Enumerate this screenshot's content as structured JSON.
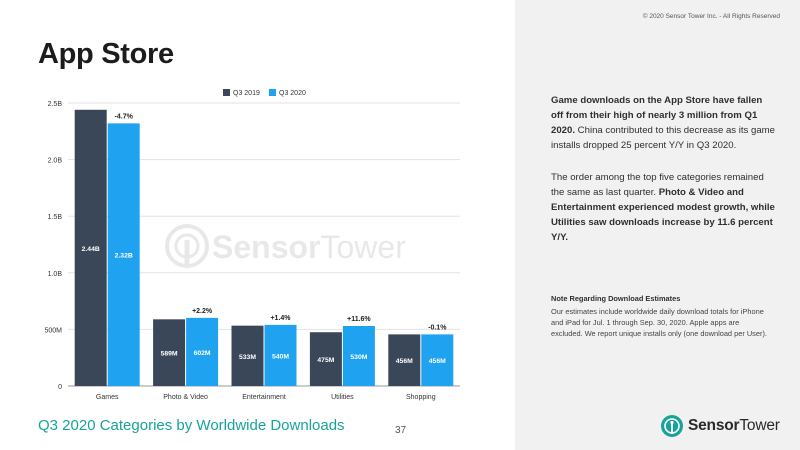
{
  "header": {
    "title": "App Store",
    "copyright": "© 2020 Sensor Tower Inc. - All Rights Reserved"
  },
  "footer": {
    "chart_title": "Q3 2020 Categories by Worldwide Downloads",
    "page_number": "37"
  },
  "watermark": {
    "text_bold": "Sensor",
    "text_light": "Tower"
  },
  "brand": {
    "text_bold": "Sensor",
    "text_light": "Tower",
    "color": "#17a39a"
  },
  "sidebar": {
    "para1": {
      "bold": "Game downloads on the App Store have fallen off from their high of nearly 3 million from Q1 2020.",
      "regular": " China contributed to this decrease as its game installs dropped 25 percent Y/Y in Q3 2020."
    },
    "para2": {
      "regular": "The order among the top five categories remained the same as last quarter. ",
      "bold": "Photo & Video and Entertainment experienced modest growth, while Utilities saw downloads increase by 11.6 percent Y/Y."
    },
    "note": {
      "title": "Note Regarding Download Estimates",
      "body": "Our estimates include worldwide daily download totals for iPhone and iPad for Jul. 1 through Sep. 30, 2020. Apple apps are excluded. We report unique installs only (one download per User)."
    }
  },
  "chart_data": {
    "type": "bar",
    "categories": [
      "Games",
      "Photo & Video",
      "Entertainment",
      "Utilities",
      "Shopping"
    ],
    "series": [
      {
        "name": "Q3 2019",
        "color": "#3a4759",
        "values": [
          2440,
          589,
          533,
          475,
          456
        ],
        "labels": [
          "2.44B",
          "589M",
          "533M",
          "475M",
          "456M"
        ]
      },
      {
        "name": "Q3 2020",
        "color": "#1fa3f0",
        "values": [
          2320,
          602,
          540,
          530,
          456
        ],
        "labels": [
          "2.32B",
          "602M",
          "540M",
          "530M",
          "456M"
        ]
      }
    ],
    "changes": [
      "-4.7%",
      "+2.2%",
      "+1.4%",
      "+11.6%",
      "-0.1%"
    ],
    "ylim": [
      0,
      2500
    ],
    "yticks": [
      0,
      500,
      1000,
      1500,
      2000,
      2500
    ],
    "ytick_labels": [
      "0",
      "500M",
      "1.0B",
      "1.5B",
      "2.0B",
      "2.5B"
    ],
    "grid": true,
    "legend": "top-center"
  }
}
